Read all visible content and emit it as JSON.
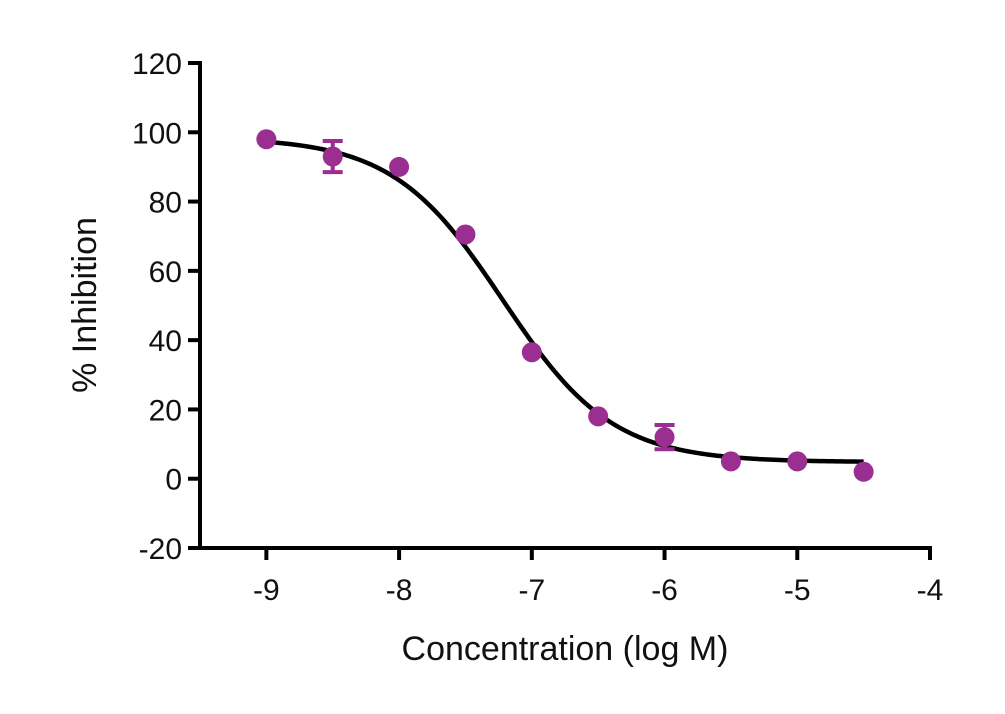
{
  "chart_data": {
    "type": "scatter",
    "title": "",
    "xlabel": "Concentration (log M)",
    "ylabel": "% Inhibition",
    "xlim": [
      -9.5,
      -4
    ],
    "ylim": [
      -20,
      120
    ],
    "x_ticks": [
      -9,
      -8,
      -7,
      -6,
      -5,
      -4
    ],
    "y_ticks": [
      -20,
      0,
      20,
      40,
      60,
      80,
      100,
      120
    ],
    "x_tick_labels": [
      "-9",
      "-8",
      "-7",
      "-6",
      "-5",
      "-4"
    ],
    "y_tick_labels": [
      "-20",
      "0",
      "20",
      "40",
      "60",
      "80",
      "100",
      "120"
    ],
    "grid": false,
    "legend": "none",
    "colors": {
      "points": "#9B2F91",
      "curve": "#000000",
      "axes": "#000000"
    },
    "series": [
      {
        "points": [
          {
            "x": -9.0,
            "y": 98,
            "err": 0
          },
          {
            "x": -8.5,
            "y": 93,
            "err": 4.5
          },
          {
            "x": -8.0,
            "y": 90,
            "err": 0
          },
          {
            "x": -7.5,
            "y": 70.5,
            "err": 0
          },
          {
            "x": -7.0,
            "y": 36.5,
            "err": 0
          },
          {
            "x": -6.5,
            "y": 18,
            "err": 0
          },
          {
            "x": -6.0,
            "y": 12,
            "err": 3.5
          },
          {
            "x": -5.5,
            "y": 5,
            "err": 0
          },
          {
            "x": -5.0,
            "y": 5,
            "err": 0
          },
          {
            "x": -4.5,
            "y": 2,
            "err": 0
          }
        ]
      }
    ],
    "fit_curve": {
      "model": "four-parameter logistic",
      "top": 98.5,
      "bottom": 4.8,
      "log_ic50": -7.22,
      "hill_slope": -1.05,
      "x_range": [
        -9.0,
        -4.5
      ]
    }
  }
}
